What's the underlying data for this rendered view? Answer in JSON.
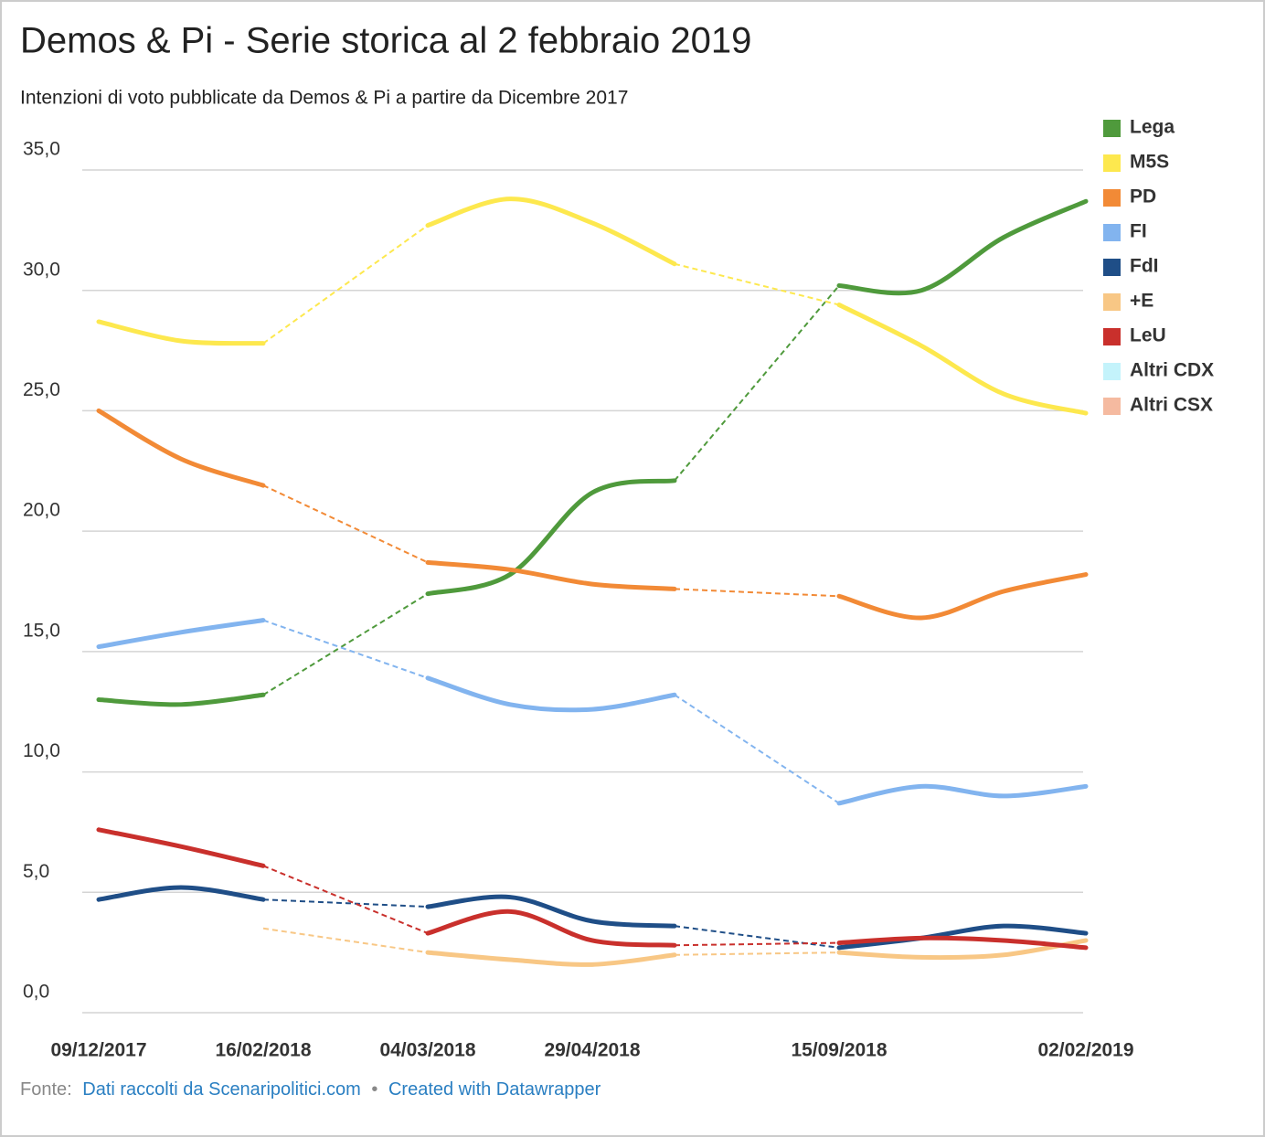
{
  "chart_data": {
    "type": "line",
    "title": "Demos & Pi - Serie storica al 2 febbraio 2019",
    "subtitle": "Intenzioni di voto pubblicate da Demos & Pi a partire da Dicembre 2017",
    "categories": [
      "09/12/2017",
      null,
      "16/02/2018",
      null,
      "04/03/2018",
      null,
      "29/04/2018",
      null,
      null,
      "15/09/2018",
      null,
      null,
      "02/02/2019"
    ],
    "series": [
      {
        "name": "Lega",
        "color": "#4f9a3c",
        "values": [
          13.0,
          12.8,
          13.2,
          null,
          17.4,
          18.2,
          21.6,
          22.1,
          null,
          30.2,
          30.0,
          32.2,
          33.7
        ]
      },
      {
        "name": "M5S",
        "color": "#fde84e",
        "values": [
          28.7,
          27.9,
          27.8,
          null,
          32.7,
          33.8,
          32.8,
          31.1,
          null,
          29.4,
          27.7,
          25.7,
          24.9
        ]
      },
      {
        "name": "PD",
        "color": "#f28a36",
        "values": [
          25.0,
          23.0,
          21.9,
          null,
          18.7,
          18.4,
          17.8,
          17.6,
          null,
          17.3,
          16.4,
          17.5,
          18.2
        ]
      },
      {
        "name": "FI",
        "color": "#82b4ef",
        "values": [
          15.2,
          15.8,
          16.3,
          null,
          13.9,
          12.8,
          12.6,
          13.2,
          null,
          8.7,
          9.4,
          9.0,
          9.4
        ]
      },
      {
        "name": "FdI",
        "color": "#1f4e87",
        "values": [
          4.7,
          5.2,
          4.7,
          null,
          4.4,
          4.8,
          3.8,
          3.6,
          null,
          2.7,
          3.1,
          3.6,
          3.3
        ]
      },
      {
        "name": "+E",
        "color": "#f8c785",
        "values": [
          null,
          null,
          3.5,
          null,
          2.5,
          2.2,
          2.0,
          2.4,
          null,
          2.5,
          2.3,
          2.4,
          3.0
        ]
      },
      {
        "name": "LeU",
        "color": "#c9302c",
        "values": [
          7.6,
          6.9,
          6.1,
          null,
          3.3,
          4.2,
          3.0,
          2.8,
          null,
          2.9,
          3.1,
          3.0,
          2.7
        ]
      },
      {
        "name": "Altri CDX",
        "color": "#c4f3fb",
        "values": [
          null,
          null,
          null,
          null,
          null,
          null,
          null,
          null,
          null,
          null,
          null,
          null,
          null
        ]
      },
      {
        "name": "Altri CSX",
        "color": "#f5baa0",
        "values": [
          null,
          null,
          null,
          null,
          null,
          null,
          null,
          null,
          null,
          null,
          null,
          null,
          null
        ]
      }
    ],
    "ylim": [
      0,
      35
    ],
    "yticks": [
      {
        "value": 0,
        "label": "0,0"
      },
      {
        "value": 5,
        "label": "5,0"
      },
      {
        "value": 10,
        "label": "10,0"
      },
      {
        "value": 15,
        "label": "15,0"
      },
      {
        "value": 20,
        "label": "20,0"
      },
      {
        "value": 25,
        "label": "25,0"
      },
      {
        "value": 30,
        "label": "30,0"
      },
      {
        "value": 35,
        "label": "35,0"
      }
    ],
    "grid": true,
    "legend": "right",
    "source": {
      "prefix": "Fonte:",
      "link": "Dati raccolti da Scenaripolitici.com",
      "separator": "•",
      "credit": "Created with Datawrapper"
    }
  }
}
